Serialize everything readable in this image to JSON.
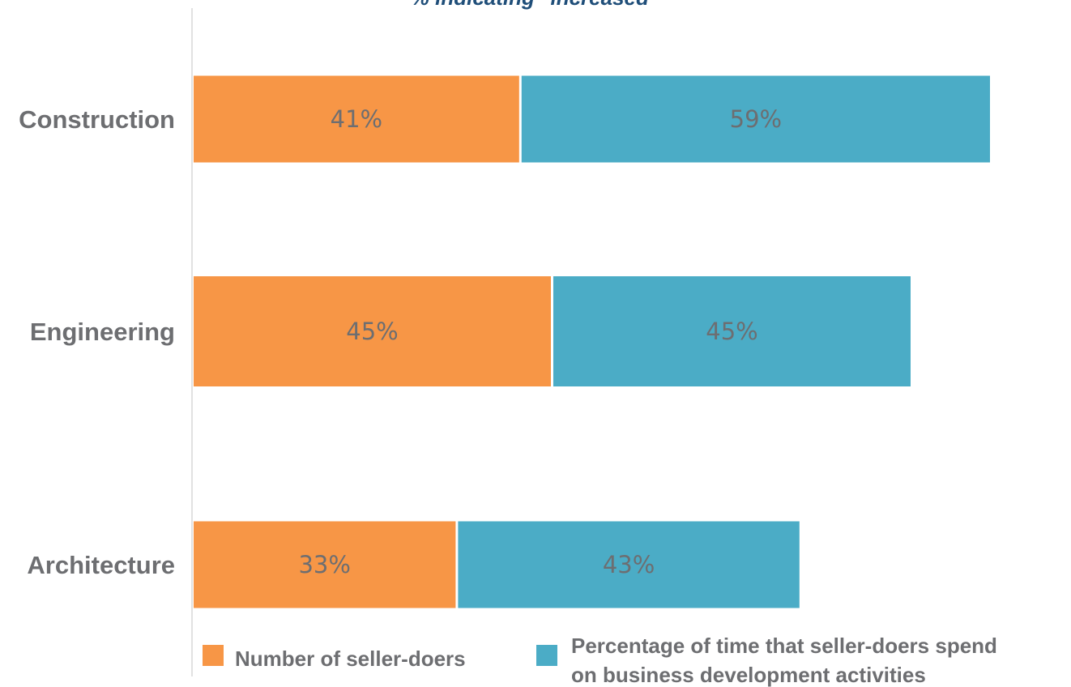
{
  "chart_data": {
    "type": "bar",
    "orientation": "horizontal",
    "stacked": true,
    "subtitle": "% indicating \"increased\"",
    "categories": [
      "Construction",
      "Engineering",
      "Architecture"
    ],
    "series": [
      {
        "name": "Number of seller-doers",
        "color": "#f79646",
        "values": [
          41,
          45,
          33
        ],
        "labels": [
          "41%",
          "45%",
          "33%"
        ]
      },
      {
        "name": "Percentage of time that seller-doers spend on business development activities",
        "color": "#4bacc6",
        "values": [
          59,
          45,
          43
        ],
        "labels": [
          "59%",
          "45%",
          "43%"
        ]
      }
    ],
    "legend": {
      "position": "bottom",
      "entries": [
        {
          "lines": [
            "Number of seller-doers"
          ]
        },
        {
          "lines": [
            "Percentage of time that seller-doers spend",
            "on business development activities"
          ]
        }
      ]
    },
    "grid": false
  }
}
